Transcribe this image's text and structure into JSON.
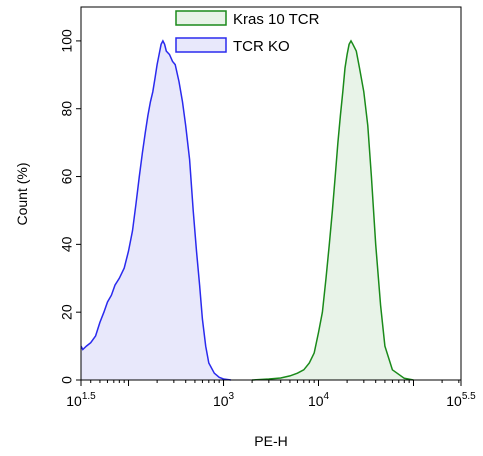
{
  "chart_data": {
    "type": "area",
    "title": "",
    "xlabel": "PE-H",
    "ylabel": "Count (%)",
    "x_scale": "log10",
    "xlim": [
      31.6,
      316228
    ],
    "ylim": [
      0,
      110
    ],
    "x_ticks": [
      {
        "value": 31.6,
        "base": "10",
        "exp": "1.5"
      },
      {
        "value": 1000,
        "base": "10",
        "exp": "3"
      },
      {
        "value": 10000,
        "base": "10",
        "exp": "4"
      },
      {
        "value": 316228,
        "base": "10",
        "exp": "5.5"
      }
    ],
    "y_ticks": [
      0,
      20,
      40,
      60,
      80,
      100
    ],
    "grid": false,
    "legend_position": "top-center",
    "series": [
      {
        "name": "Kras 10 TCR",
        "line_color": "#1a8a1a",
        "fill_color": "#e8f3e8",
        "points": [
          [
            2000,
            0
          ],
          [
            3000,
            0.3
          ],
          [
            4000,
            0.6
          ],
          [
            5000,
            1.2
          ],
          [
            6000,
            2
          ],
          [
            7000,
            3
          ],
          [
            8000,
            5
          ],
          [
            9000,
            8
          ],
          [
            10000,
            14
          ],
          [
            11000,
            20
          ],
          [
            12000,
            30
          ],
          [
            13000,
            40
          ],
          [
            14000,
            50
          ],
          [
            15000,
            60
          ],
          [
            16000,
            70
          ],
          [
            17000,
            78
          ],
          [
            18000,
            85
          ],
          [
            19000,
            92
          ],
          [
            20000,
            96
          ],
          [
            21000,
            99
          ],
          [
            22000,
            100
          ],
          [
            23000,
            99
          ],
          [
            25000,
            97
          ],
          [
            27000,
            92
          ],
          [
            30000,
            85
          ],
          [
            33000,
            75
          ],
          [
            36000,
            60
          ],
          [
            40000,
            40
          ],
          [
            45000,
            22
          ],
          [
            50000,
            10
          ],
          [
            60000,
            3
          ],
          [
            80000,
            0.5
          ],
          [
            100000,
            0
          ]
        ]
      },
      {
        "name": "TCR KO",
        "line_color": "#2a2aee",
        "fill_color": "#e8e8fb",
        "points": [
          [
            31.6,
            10
          ],
          [
            33,
            9
          ],
          [
            36,
            10
          ],
          [
            40,
            11
          ],
          [
            45,
            13
          ],
          [
            50,
            17
          ],
          [
            55,
            20
          ],
          [
            60,
            23
          ],
          [
            66,
            25
          ],
          [
            72,
            28
          ],
          [
            80,
            30
          ],
          [
            90,
            33
          ],
          [
            100,
            38
          ],
          [
            110,
            44
          ],
          [
            120,
            52
          ],
          [
            130,
            60
          ],
          [
            140,
            67
          ],
          [
            150,
            73
          ],
          [
            160,
            78
          ],
          [
            170,
            82
          ],
          [
            180,
            85
          ],
          [
            190,
            89
          ],
          [
            200,
            93
          ],
          [
            210,
            96
          ],
          [
            220,
            99
          ],
          [
            230,
            100
          ],
          [
            240,
            99
          ],
          [
            250,
            97
          ],
          [
            270,
            96
          ],
          [
            290,
            94
          ],
          [
            310,
            93
          ],
          [
            340,
            88
          ],
          [
            370,
            82
          ],
          [
            400,
            75
          ],
          [
            440,
            65
          ],
          [
            480,
            50
          ],
          [
            520,
            38
          ],
          [
            560,
            28
          ],
          [
            600,
            18
          ],
          [
            650,
            10
          ],
          [
            700,
            5
          ],
          [
            800,
            2
          ],
          [
            900,
            0.8
          ],
          [
            1000,
            0.3
          ],
          [
            1200,
            0
          ]
        ]
      }
    ]
  }
}
